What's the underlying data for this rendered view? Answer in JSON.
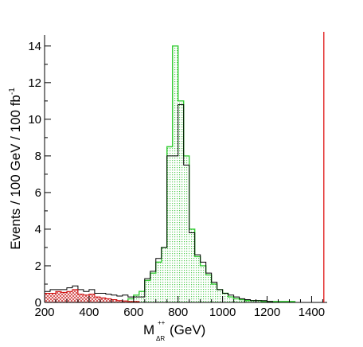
{
  "chart_data": {
    "type": "bar",
    "title": "",
    "xlabel_main": "M",
    "xlabel_sub": "ΔR",
    "xlabel_sup": "++",
    "xlabel_unit": "(GeV)",
    "ylabel": "Events / 100 GeV / 100 fb",
    "ylabel_sup": "-1",
    "xlim": [
      200,
      1470
    ],
    "ylim": [
      0,
      14.6
    ],
    "xticks": [
      200,
      400,
      600,
      800,
      1000,
      1200,
      1400
    ],
    "yticks": [
      0,
      2,
      4,
      6,
      8,
      10,
      12,
      14
    ],
    "bin_width": 25,
    "red_line_x": 1455,
    "series": [
      {
        "role": "signal",
        "color": "#33cc33",
        "bins": [
          [
            575,
            0.2
          ],
          [
            600,
            0.4
          ],
          [
            625,
            0.6
          ],
          [
            650,
            1.2
          ],
          [
            675,
            1.6
          ],
          [
            700,
            2.2
          ],
          [
            725,
            3.0
          ],
          [
            750,
            8.5
          ],
          [
            775,
            14.0
          ],
          [
            800,
            11.0
          ],
          [
            825,
            8.0
          ],
          [
            850,
            4.0
          ],
          [
            875,
            2.5
          ],
          [
            900,
            2.0
          ],
          [
            925,
            1.5
          ],
          [
            950,
            1.0
          ],
          [
            975,
            0.7
          ],
          [
            1000,
            0.5
          ],
          [
            1025,
            0.3
          ],
          [
            1050,
            0.2
          ],
          [
            1075,
            0.15
          ],
          [
            1100,
            0.1
          ],
          [
            1125,
            0.1
          ],
          [
            1150,
            0.1
          ],
          [
            1175,
            0.05
          ],
          [
            1200,
            0.05
          ],
          [
            1225,
            0.05
          ],
          [
            1250,
            0.05
          ],
          [
            1275,
            0.05
          ],
          [
            1300,
            0.05
          ]
        ]
      },
      {
        "role": "background-black",
        "color": "#000000",
        "bins": [
          [
            200,
            0.6
          ],
          [
            225,
            0.7
          ],
          [
            250,
            0.7
          ],
          [
            275,
            0.7
          ],
          [
            300,
            0.8
          ],
          [
            325,
            0.9
          ],
          [
            350,
            0.7
          ],
          [
            375,
            0.6
          ],
          [
            400,
            0.7
          ],
          [
            425,
            0.5
          ],
          [
            450,
            0.5
          ],
          [
            475,
            0.45
          ],
          [
            500,
            0.4
          ],
          [
            525,
            0.35
          ],
          [
            550,
            0.4
          ],
          [
            575,
            0.3
          ],
          [
            600,
            0.3
          ],
          [
            625,
            0.3
          ],
          [
            650,
            1.3
          ],
          [
            675,
            1.7
          ],
          [
            700,
            2.4
          ],
          [
            725,
            3.0
          ],
          [
            750,
            8.0
          ],
          [
            775,
            8.0
          ],
          [
            800,
            10.8
          ],
          [
            825,
            7.5
          ],
          [
            850,
            3.8
          ],
          [
            875,
            2.6
          ],
          [
            900,
            2.2
          ],
          [
            925,
            1.6
          ],
          [
            950,
            1.1
          ],
          [
            975,
            0.7
          ],
          [
            1000,
            0.5
          ],
          [
            1025,
            0.4
          ],
          [
            1050,
            0.3
          ],
          [
            1075,
            0.2
          ],
          [
            1100,
            0.15
          ],
          [
            1125,
            0.1
          ],
          [
            1150,
            0.1
          ],
          [
            1175,
            0.1
          ],
          [
            1200,
            0.05
          ]
        ]
      },
      {
        "role": "background-red",
        "color": "#cc0000",
        "bins": [
          [
            200,
            0.5
          ],
          [
            225,
            0.5
          ],
          [
            250,
            0.6
          ],
          [
            275,
            0.55
          ],
          [
            300,
            0.6
          ],
          [
            325,
            0.7
          ],
          [
            350,
            0.45
          ],
          [
            375,
            0.4
          ],
          [
            400,
            0.45
          ],
          [
            425,
            0.3
          ],
          [
            450,
            0.25
          ],
          [
            475,
            0.2
          ],
          [
            500,
            0.15
          ],
          [
            525,
            0.1
          ],
          [
            550,
            0.08
          ],
          [
            575,
            0.05
          ],
          [
            600,
            0.05
          ]
        ]
      }
    ]
  }
}
